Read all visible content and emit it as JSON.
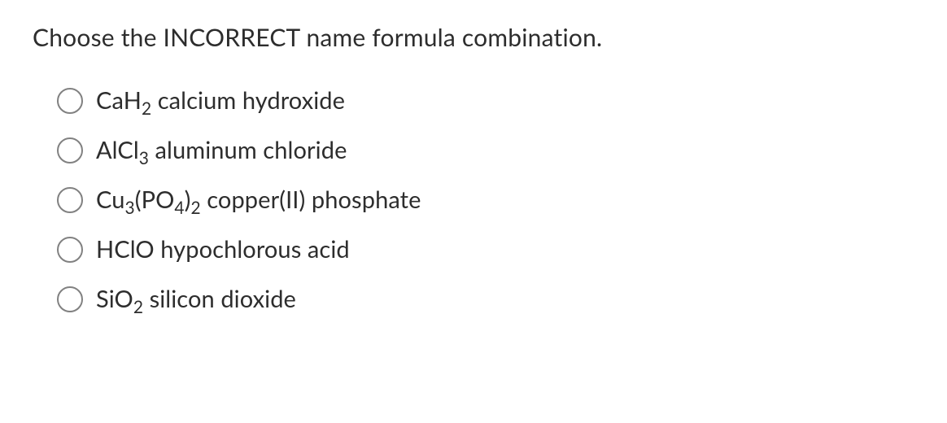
{
  "question": {
    "text": "Choose the INCORRECT name formula combination.",
    "text_color": "#2d2d2d",
    "fontsize": 30
  },
  "options": [
    {
      "formula_parts": [
        {
          "t": "CaH",
          "sub": false
        },
        {
          "t": "2",
          "sub": true
        }
      ],
      "name": "calcium hydroxide"
    },
    {
      "formula_parts": [
        {
          "t": "AlCl",
          "sub": false
        },
        {
          "t": "3",
          "sub": true
        }
      ],
      "name": "aluminum chloride"
    },
    {
      "formula_parts": [
        {
          "t": "Cu",
          "sub": false
        },
        {
          "t": "3",
          "sub": true
        },
        {
          "t": "(PO",
          "sub": false
        },
        {
          "t": "4",
          "sub": true
        },
        {
          "t": ")",
          "sub": false
        },
        {
          "t": "2",
          "sub": true
        }
      ],
      "name": "copper(II) phosphate"
    },
    {
      "formula_parts": [
        {
          "t": "HClO",
          "sub": false
        }
      ],
      "name": "hypochlorous acid"
    },
    {
      "formula_parts": [
        {
          "t": "SiO",
          "sub": false
        },
        {
          "t": "2",
          "sub": true
        }
      ],
      "name": "silicon dioxide"
    }
  ],
  "styling": {
    "background_color": "#ffffff",
    "radio_border_color": "#818181",
    "radio_size": 32,
    "option_fontsize": 29,
    "option_text_color": "#2d2d2d"
  }
}
